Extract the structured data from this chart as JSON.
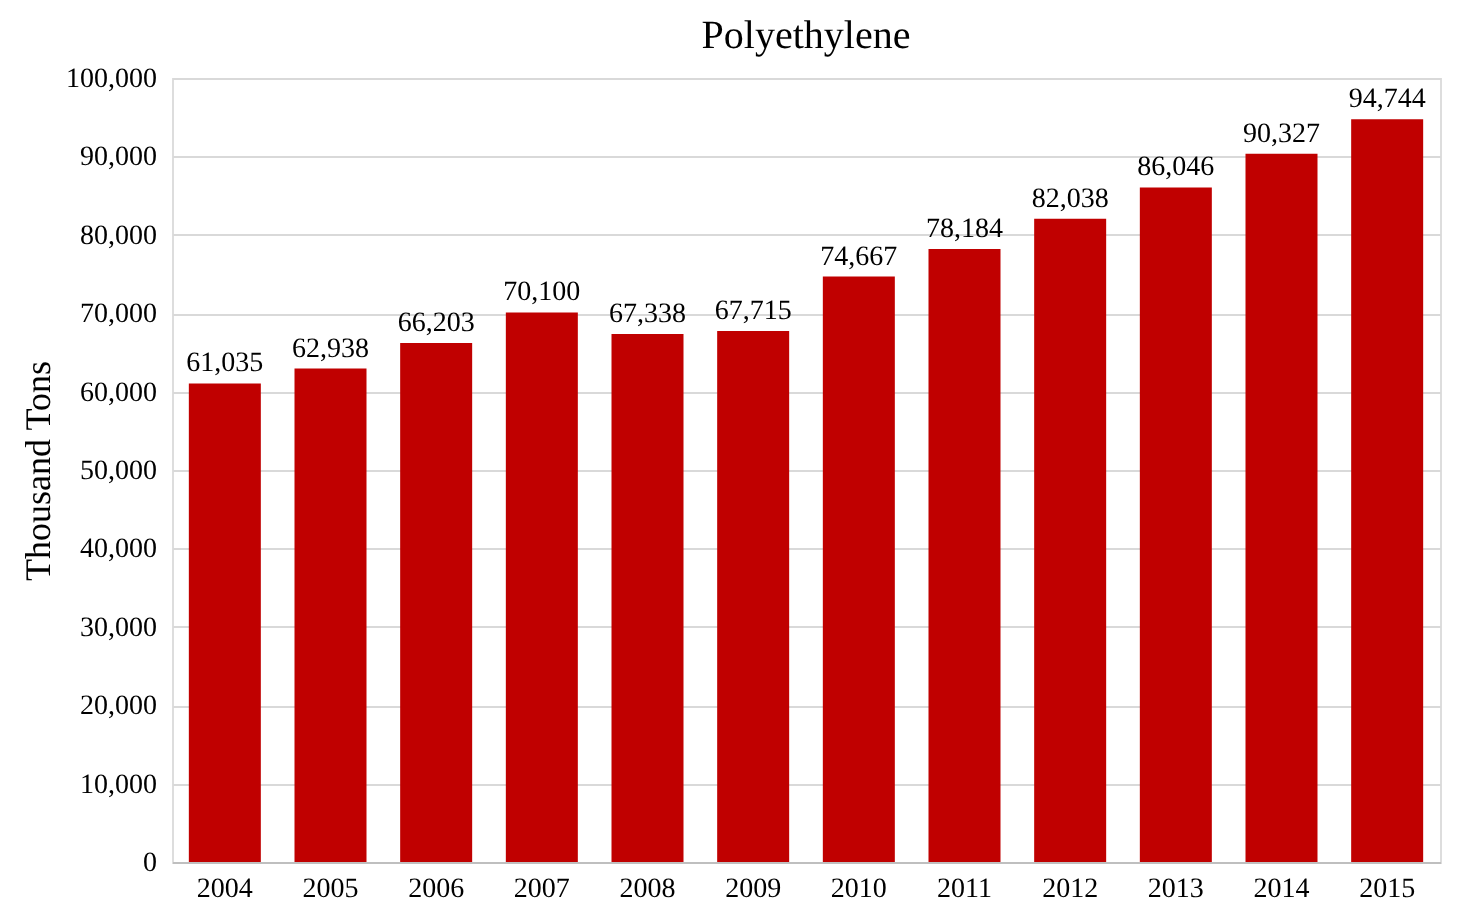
{
  "chart_data": {
    "type": "bar",
    "title": "Polyethylene",
    "ylabel": "Thousand Tons",
    "categories": [
      "2004",
      "2005",
      "2006",
      "2007",
      "2008",
      "2009",
      "2010",
      "2011",
      "2012",
      "2013",
      "2014",
      "2015"
    ],
    "values": [
      61035,
      62938,
      66203,
      70100,
      67338,
      67715,
      74667,
      78184,
      82038,
      86046,
      90327,
      94744
    ],
    "color": "#c00000",
    "ylim": [
      0,
      100000
    ],
    "yticks": [
      {
        "value": 0,
        "label": "0"
      },
      {
        "value": 10000,
        "label": "10,000"
      },
      {
        "value": 20000,
        "label": "20,000"
      },
      {
        "value": 30000,
        "label": "30,000"
      },
      {
        "value": 40000,
        "label": "40,000"
      },
      {
        "value": 50000,
        "label": "50,000"
      },
      {
        "value": 60000,
        "label": "60,000"
      },
      {
        "value": 70000,
        "label": "70,000"
      },
      {
        "value": 80000,
        "label": "80,000"
      },
      {
        "value": 90000,
        "label": "90,000"
      },
      {
        "value": 100000,
        "label": "100,000"
      }
    ],
    "value_labels": [
      "61,035",
      "62,938",
      "66,203",
      "70,100",
      "67,338",
      "67,715",
      "74,667",
      "78,184",
      "82,038",
      "86,046",
      "90,327",
      "94,744"
    ],
    "grid": "y"
  }
}
